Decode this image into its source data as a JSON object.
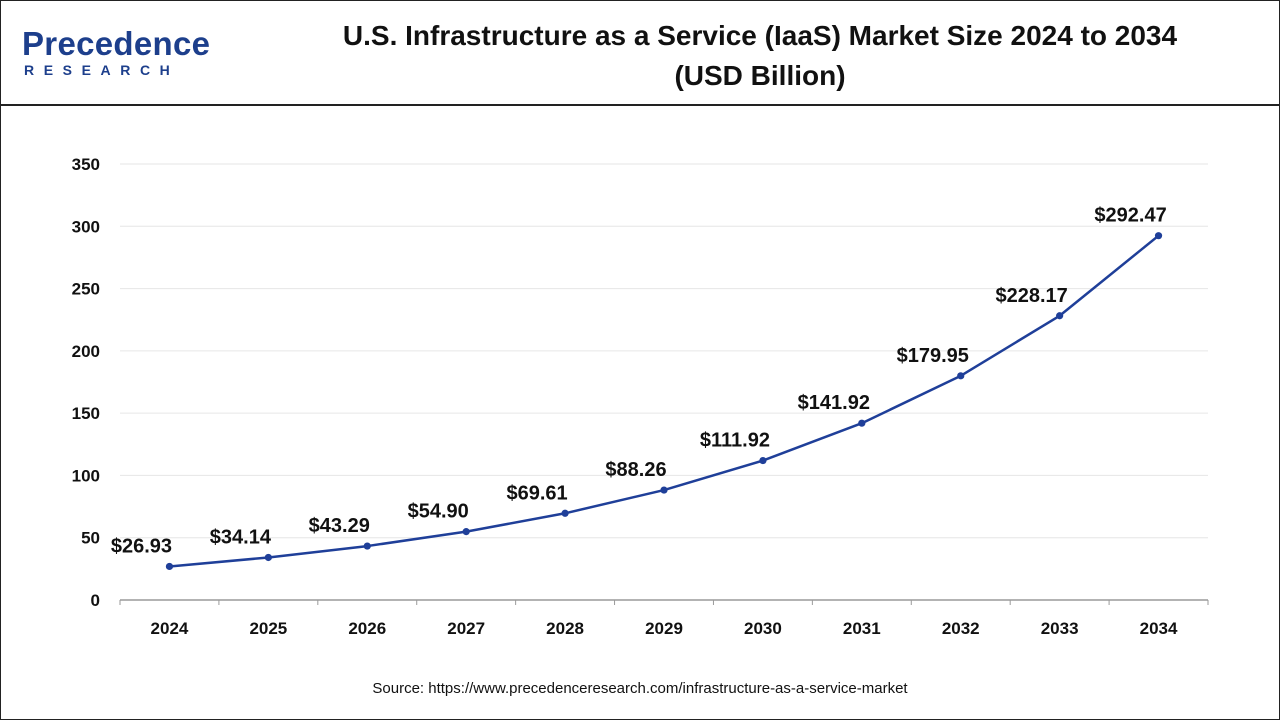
{
  "header": {
    "logo_word": "Precedence",
    "logo_sub": "RESEARCH",
    "title_line1": "U.S. Infrastructure as a Service (IaaS) Market Size 2024 to 2034",
    "title_line2": "(USD Billion)"
  },
  "source": "Source: https://www.precedenceresearch.com/infrastructure-as-a-service-market",
  "colors": {
    "line": "#1f3f99",
    "point": "#1f3f99",
    "grid": "#e6e6e6",
    "axis": "#9a9a9a",
    "brand": "#1d3f8c"
  },
  "chart_data": {
    "type": "line",
    "title": "U.S. Infrastructure as a Service (IaaS) Market Size 2024 to 2034 (USD Billion)",
    "xlabel": "",
    "ylabel": "",
    "categories": [
      "2024",
      "2025",
      "2026",
      "2027",
      "2028",
      "2029",
      "2030",
      "2031",
      "2032",
      "2033",
      "2034"
    ],
    "series": [
      {
        "name": "Market Size (USD Billion)",
        "values": [
          26.93,
          34.14,
          43.29,
          54.9,
          69.61,
          88.26,
          111.92,
          141.92,
          179.95,
          228.17,
          292.47
        ],
        "labels": [
          "$26.93",
          "$34.14",
          "$43.29",
          "$54.90",
          "$69.61",
          "$88.26",
          "$111.92",
          "$141.92",
          "$179.95",
          "$228.17",
          "$292.47"
        ]
      }
    ],
    "ylim": [
      0,
      350
    ],
    "yticks": [
      "0",
      "50",
      "100",
      "150",
      "200",
      "250",
      "300",
      "350"
    ],
    "ytick_values": [
      0,
      50,
      100,
      150,
      200,
      250,
      300,
      350
    ],
    "grid": true,
    "legend": "none"
  }
}
